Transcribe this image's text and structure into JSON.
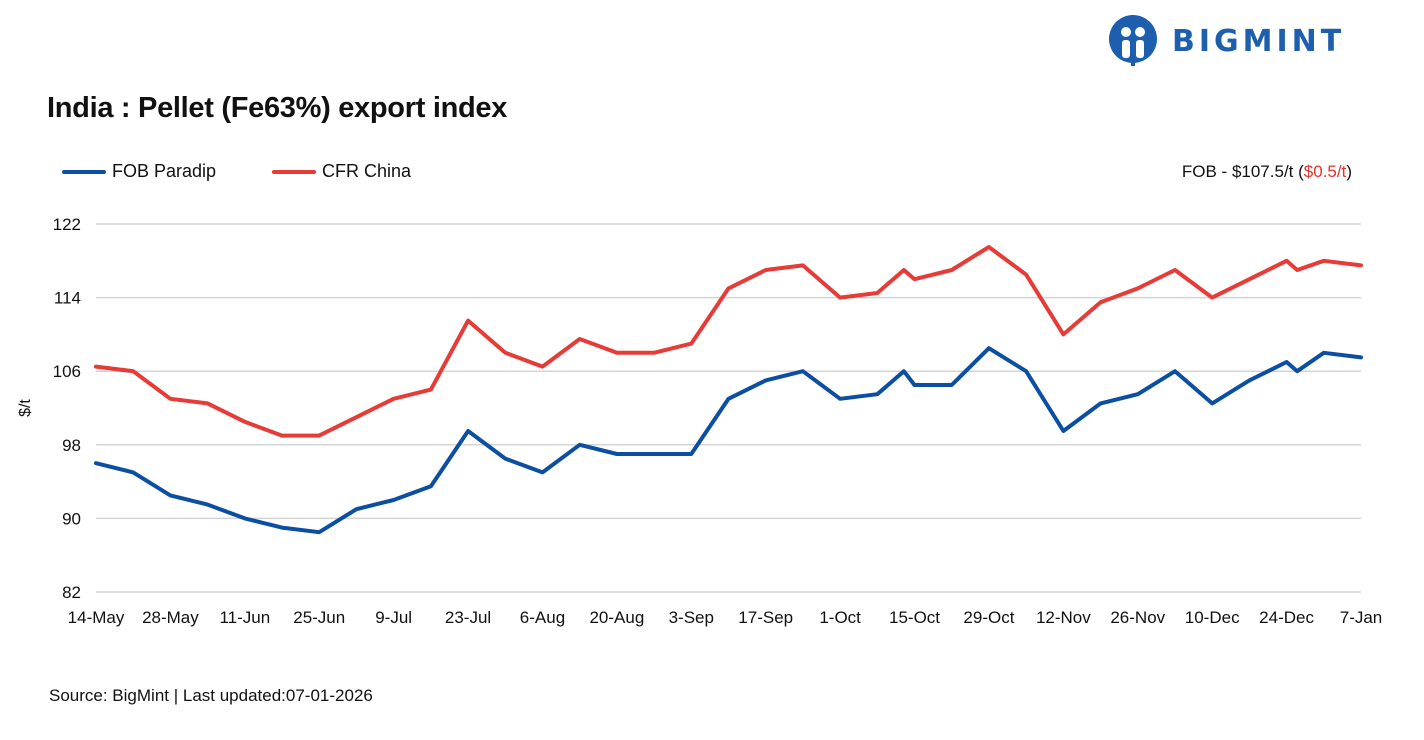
{
  "brand": {
    "name": "BIGMINT"
  },
  "header": {
    "title": "India : Pellet (Fe63%) export index"
  },
  "legend": [
    {
      "label": "FOB Paradip",
      "color": "#0b4ea2"
    },
    {
      "label": "CFR China",
      "color": "#e63b36"
    }
  ],
  "price_note": {
    "main": "FOB - $107.5/t (",
    "change": "$0.5/t",
    "close": ")"
  },
  "footer": {
    "source": "Source: BigMint | Last updated:07-01-2026"
  },
  "chart_data": {
    "type": "line",
    "title": "India : Pellet (Fe63%) export index",
    "ylabel": "$/t",
    "xlabel": "",
    "ylim": [
      82,
      122
    ],
    "yticks": [
      82,
      90,
      98,
      106,
      114,
      122
    ],
    "grid": true,
    "legend_position": "top-left",
    "xtick_labels": [
      "14-May",
      "28-May",
      "11-Jun",
      "25-Jun",
      "9-Jul",
      "23-Jul",
      "6-Aug",
      "20-Aug",
      "3-Sep",
      "17-Sep",
      "1-Oct",
      "15-Oct",
      "29-Oct",
      "12-Nov",
      "26-Nov",
      "10-Dec",
      "24-Dec",
      "7-Jan"
    ],
    "x": [
      "14-May",
      "21-May",
      "28-May",
      "4-Jun",
      "11-Jun",
      "18-Jun",
      "25-Jun",
      "2-Jul",
      "9-Jul",
      "16-Jul",
      "23-Jul",
      "30-Jul",
      "6-Aug",
      "13-Aug",
      "20-Aug",
      "27-Aug",
      "3-Sep",
      "10-Sep",
      "17-Sep",
      "24-Sep",
      "1-Oct",
      "8-Oct",
      "13-Oct",
      "15-Oct",
      "22-Oct",
      "29-Oct",
      "5-Nov",
      "12-Nov",
      "19-Nov",
      "26-Nov",
      "3-Dec",
      "10-Dec",
      "17-Dec",
      "24-Dec",
      "26-Dec",
      "31-Dec",
      "7-Jan"
    ],
    "series": [
      {
        "name": "FOB Paradip",
        "color": "#0b4ea2",
        "values": [
          96,
          95,
          92.5,
          91.5,
          90,
          89,
          88.5,
          91,
          92,
          93.5,
          99.5,
          96.5,
          95,
          98,
          97,
          97,
          97,
          103,
          105,
          106,
          103,
          103.5,
          106,
          104.5,
          104.5,
          108.5,
          106,
          99.5,
          102.5,
          103.5,
          106,
          102.5,
          105,
          107,
          106,
          108,
          107.5
        ]
      },
      {
        "name": "CFR China",
        "color": "#e63b36",
        "values": [
          106.5,
          106,
          103,
          102.5,
          100.5,
          99,
          99,
          101,
          103,
          104,
          111.5,
          108,
          106.5,
          109.5,
          108,
          108,
          109,
          115,
          117,
          117.5,
          114,
          114.5,
          117,
          116,
          117,
          119.5,
          116.5,
          110,
          113.5,
          115,
          117,
          114,
          116,
          118,
          117,
          118,
          117.5
        ]
      }
    ]
  }
}
